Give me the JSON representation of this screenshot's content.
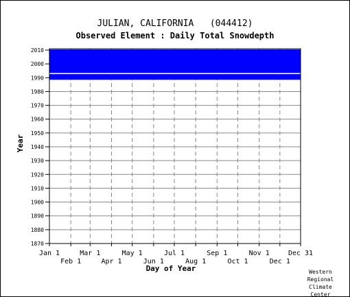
{
  "chart_data": {
    "type": "heatmap",
    "title": "JULIAN, CALIFORNIA   (044412)",
    "subtitle": "Observed Element : Daily Total Snowdepth",
    "xlabel": "Day of Year",
    "ylabel": "Year",
    "ylim": [
      1870,
      2011
    ],
    "xlim": [
      1,
      365
    ],
    "y_ticks": [
      2010,
      2000,
      1990,
      1980,
      1970,
      1960,
      1950,
      1940,
      1930,
      1920,
      1910,
      1900,
      1890,
      1880,
      1870
    ],
    "x_ticks_top_row": [
      {
        "label": "Jan 1",
        "day": 1
      },
      {
        "label": "Mar 1",
        "day": 60
      },
      {
        "label": "May 1",
        "day": 121
      },
      {
        "label": "Jul 1",
        "day": 182
      },
      {
        "label": "Sep 1",
        "day": 244
      },
      {
        "label": "Nov 1",
        "day": 305
      },
      {
        "label": "Dec 31",
        "day": 365
      }
    ],
    "x_ticks_bottom_row": [
      {
        "label": "Feb 1",
        "day": 32
      },
      {
        "label": "Apr 1",
        "day": 91
      },
      {
        "label": "Jun 1",
        "day": 152
      },
      {
        "label": "Aug 1",
        "day": 213
      },
      {
        "label": "Oct 1",
        "day": 274
      },
      {
        "label": "Dec 1",
        "day": 335
      }
    ],
    "data_coverage_years": [
      1989,
      2010
    ],
    "data_color": "#0000ff",
    "missing_years": [
      1993
    ],
    "grid": true
  },
  "credit": [
    "Western",
    "Regional",
    "Climate",
    "Center"
  ]
}
